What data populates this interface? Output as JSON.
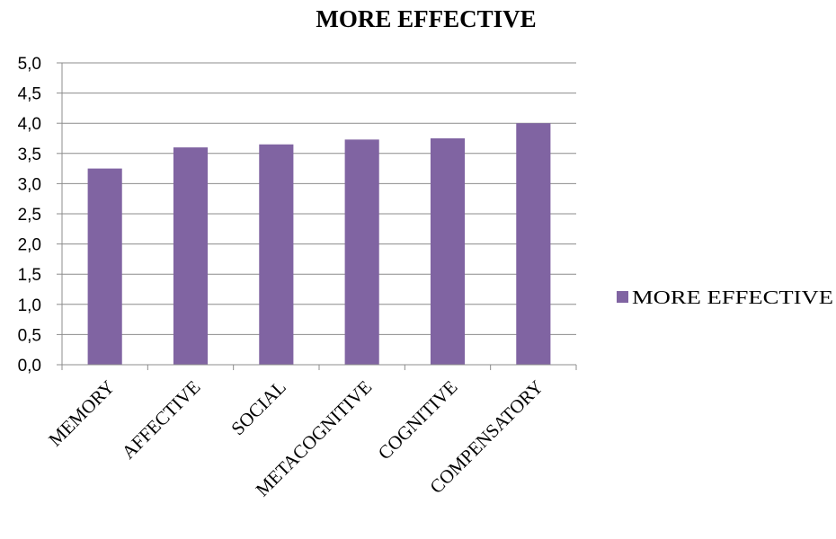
{
  "chart_data": {
    "type": "bar",
    "title": "MORE EFFECTIVE",
    "categories": [
      "MEMORY",
      "AFFECTIVE",
      "SOCIAL",
      "METACOGNITIVE",
      "COGNITIVE",
      "COMPENSATORY"
    ],
    "series": [
      {
        "name": "MORE EFFECTIVE",
        "values": [
          3.25,
          3.6,
          3.65,
          3.73,
          3.75,
          4.0
        ],
        "color": "#8064A2"
      }
    ],
    "ylim": [
      0,
      5
    ],
    "yticks": [
      "0,0",
      "0,5",
      "1,0",
      "1,5",
      "2,0",
      "2,5",
      "3,0",
      "3,5",
      "4,0",
      "4,5",
      "5,0"
    ],
    "grid": true,
    "legend_position": "right"
  }
}
